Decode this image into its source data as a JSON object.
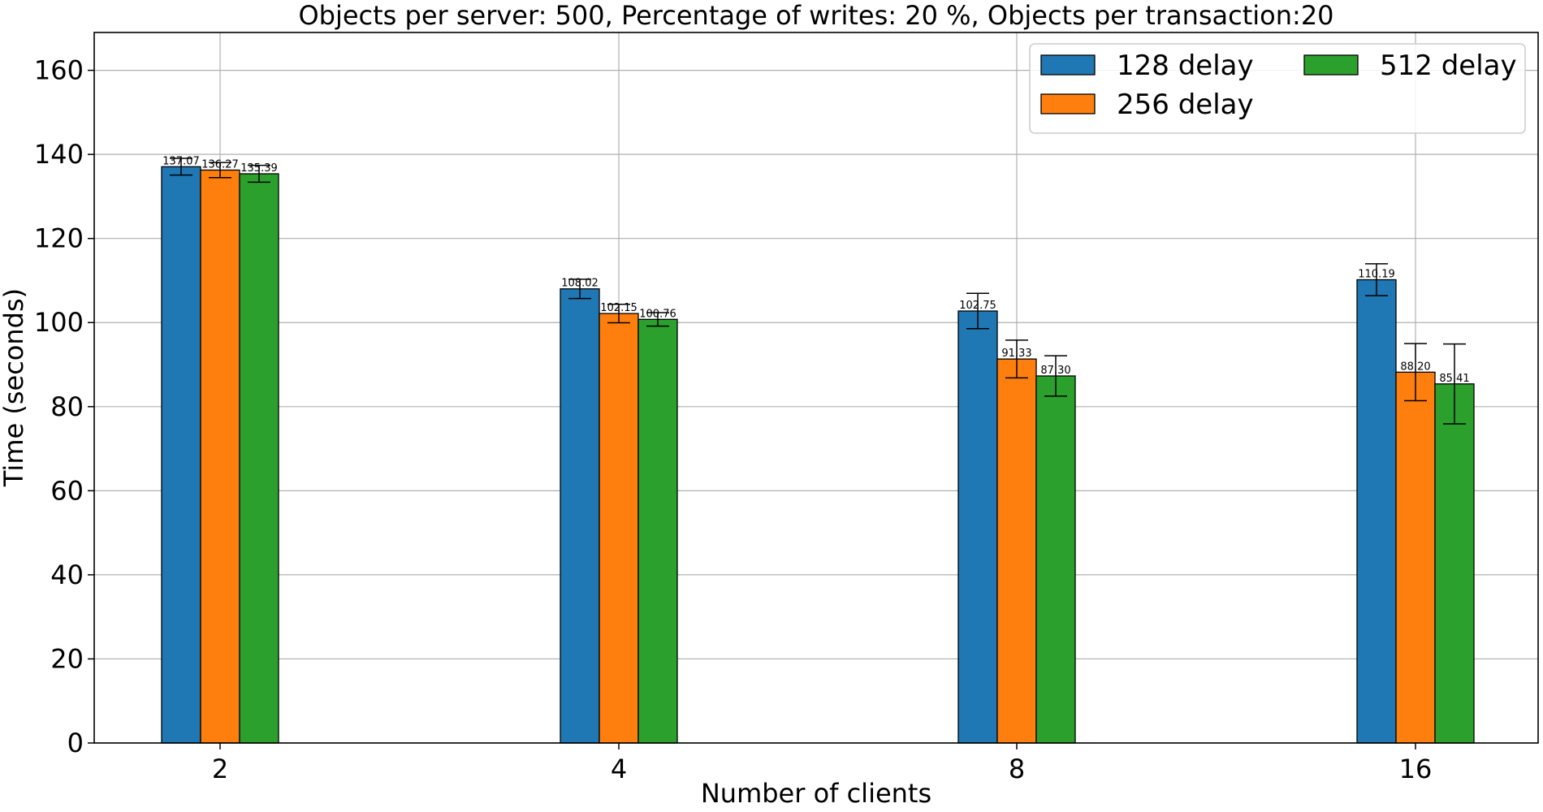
{
  "chart_data": {
    "type": "bar",
    "title": "Objects per server: 500, Percentage of writes: 20 %, Objects per transaction:20",
    "xlabel": "Number of clients",
    "ylabel": "Time (seconds)",
    "categories": [
      "2",
      "4",
      "8",
      "16"
    ],
    "ylim": [
      0,
      169
    ],
    "yticks": [
      0,
      20,
      40,
      60,
      80,
      100,
      120,
      140,
      160
    ],
    "grid": true,
    "legend_position": "top-right",
    "series": [
      {
        "name": "128 delay",
        "color": "#1f77b4",
        "values": [
          137.07,
          108.02,
          102.75,
          110.19
        ],
        "labels": [
          "137.07",
          "108.02",
          "102.75",
          "110.19"
        ],
        "errors": [
          2.0,
          2.3,
          4.2,
          3.8
        ]
      },
      {
        "name": "256 delay",
        "color": "#ff7f0e",
        "values": [
          136.27,
          102.15,
          91.33,
          88.2
        ],
        "labels": [
          "136.27",
          "102.15",
          "91.33",
          "88.20"
        ],
        "errors": [
          1.8,
          2.2,
          4.5,
          6.8
        ]
      },
      {
        "name": "512 delay",
        "color": "#2ca02c",
        "values": [
          135.39,
          100.76,
          87.3,
          85.41
        ],
        "labels": [
          "135.39",
          "100.76",
          "87.30",
          "85.41"
        ],
        "errors": [
          2.0,
          1.6,
          4.8,
          9.5
        ]
      }
    ]
  }
}
